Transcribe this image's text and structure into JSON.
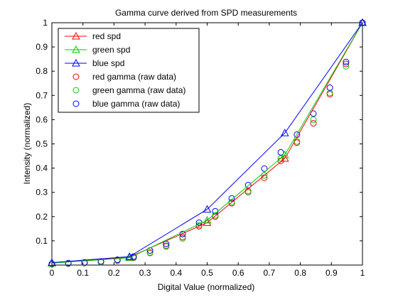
{
  "chart_data": {
    "type": "line",
    "title": "Gamma curve derived from SPD measurements",
    "xlabel": "Digital Value (normalized)",
    "ylabel": "Intensity (normalized)",
    "xlim": [
      0,
      1
    ],
    "ylim": [
      0,
      1
    ],
    "x_ticks": [
      "0",
      "0.1",
      "0.2",
      "0.3",
      "0.4",
      "0.5",
      "0.6",
      "0.7",
      "0.8",
      "0.9",
      "1"
    ],
    "y_ticks": [
      "0.1",
      "0.2",
      "0.3",
      "0.4",
      "0.5",
      "0.6",
      "0.7",
      "0.8",
      "0.9",
      "1"
    ],
    "grid": false,
    "legend_position": "top-left",
    "line_series": [
      {
        "name": "red spd",
        "color": "#ff0000",
        "marker": "triangle",
        "x": [
          0,
          0.25,
          0.5,
          0.75,
          1.0
        ],
        "y": [
          0.008,
          0.033,
          0.175,
          0.44,
          1.0
        ]
      },
      {
        "name": "green spd",
        "color": "#00cc00",
        "marker": "triangle",
        "x": [
          0,
          0.25,
          0.5,
          0.75,
          1.0
        ],
        "y": [
          0.008,
          0.03,
          0.185,
          0.455,
          1.0
        ]
      },
      {
        "name": "blue spd",
        "color": "#0000ff",
        "marker": "triangle",
        "x": [
          0,
          0.25,
          0.5,
          0.75,
          1.0
        ],
        "y": [
          0.01,
          0.035,
          0.23,
          0.545,
          1.0
        ]
      }
    ],
    "scatter_series": [
      {
        "name": "red gamma (raw data)",
        "color": "#ff0000",
        "marker": "circle",
        "x": [
          0,
          0.053,
          0.105,
          0.158,
          0.211,
          0.263,
          0.316,
          0.368,
          0.421,
          0.474,
          0.526,
          0.579,
          0.632,
          0.684,
          0.737,
          0.789,
          0.842,
          0.895,
          0.947,
          1.0
        ],
        "y": [
          0.003,
          0.006,
          0.008,
          0.012,
          0.018,
          0.03,
          0.05,
          0.077,
          0.115,
          0.16,
          0.2,
          0.255,
          0.305,
          0.36,
          0.43,
          0.505,
          0.585,
          0.705,
          0.83,
          1.0
        ]
      },
      {
        "name": "green gamma (raw data)",
        "color": "#00cc00",
        "marker": "circle",
        "x": [
          0,
          0.053,
          0.105,
          0.158,
          0.211,
          0.263,
          0.316,
          0.368,
          0.421,
          0.474,
          0.526,
          0.579,
          0.632,
          0.684,
          0.737,
          0.789,
          0.842,
          0.895,
          0.947,
          1.0
        ],
        "y": [
          0.004,
          0.007,
          0.009,
          0.013,
          0.02,
          0.032,
          0.052,
          0.08,
          0.11,
          0.165,
          0.205,
          0.26,
          0.3,
          0.37,
          0.44,
          0.51,
          0.6,
          0.71,
          0.82,
          1.0
        ]
      },
      {
        "name": "blue gamma (raw data)",
        "color": "#0000ff",
        "marker": "circle",
        "x": [
          0,
          0.053,
          0.105,
          0.158,
          0.211,
          0.263,
          0.316,
          0.368,
          0.421,
          0.474,
          0.526,
          0.579,
          0.632,
          0.684,
          0.737,
          0.789,
          0.842,
          0.895,
          0.947,
          1.0
        ],
        "y": [
          0.005,
          0.008,
          0.011,
          0.015,
          0.022,
          0.035,
          0.06,
          0.087,
          0.128,
          0.175,
          0.222,
          0.275,
          0.33,
          0.398,
          0.465,
          0.538,
          0.625,
          0.732,
          0.838,
          1.0
        ]
      }
    ],
    "legend": [
      "red spd",
      "green spd",
      "blue spd",
      "red gamma (raw data)",
      "green gamma (raw data)",
      "blue gamma (raw data)"
    ]
  }
}
